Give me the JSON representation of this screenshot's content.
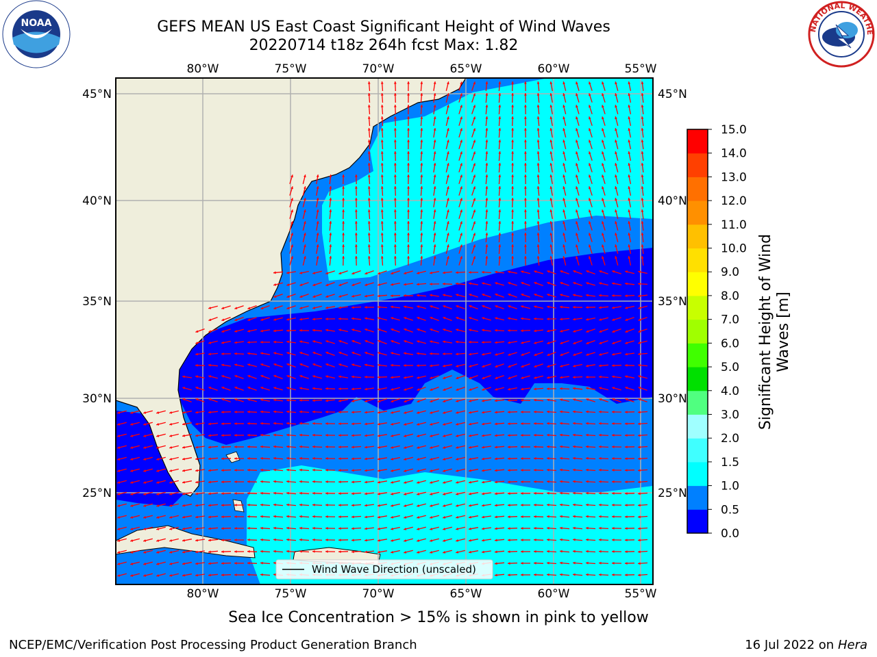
{
  "header": {
    "title_line1": "GEFS MEAN US East Coast Significant Height of Wind Waves",
    "title_line2": "20220714 t18z 264h fcst   Max: 1.82"
  },
  "logos": {
    "left": {
      "icon": "noaa-logo",
      "text": "NOAA",
      "ring_text": "NATIONAL OCEANIC AND ATMOSPHERIC ADMINISTRATION · U.S. DEPARTMENT OF COMMERCE"
    },
    "right": {
      "icon": "nws-logo",
      "ring_text": "NATIONAL WEATHER SERVICE"
    }
  },
  "map": {
    "lon_labels": [
      "80°W",
      "75°W",
      "70°W",
      "65°W",
      "60°W",
      "55°W"
    ],
    "lat_labels": [
      "45°N",
      "40°N",
      "35°N",
      "30°N",
      "25°N"
    ],
    "legend_label": "Wind Wave Direction (unscaled)",
    "colors": {
      "land": "#efeedc",
      "ocean_low": "#0000ff",
      "grid": "#b0b0b0",
      "arrow": "#ff0000"
    }
  },
  "colorbar": {
    "label": "Significant Height of Wind Waves [m]",
    "ticks": [
      "0.0",
      "0.5",
      "1.0",
      "1.5",
      "2.0",
      "3.0",
      "4.0",
      "5.0",
      "6.0",
      "7.0",
      "8.0",
      "9.0",
      "10.0",
      "11.0",
      "12.0",
      "13.0",
      "14.0",
      "15.0"
    ],
    "colors": [
      "#0000ff",
      "#0080ff",
      "#00ffff",
      "#40ffff",
      "#a0ffff",
      "#50ff80",
      "#00e000",
      "#40ff00",
      "#a0ff00",
      "#c8ff00",
      "#ffff00",
      "#ffe000",
      "#ffc000",
      "#ff9000",
      "#ff7000",
      "#ff4000",
      "#ff0000"
    ]
  },
  "footer": {
    "sea_ice_note": "Sea Ice Concentration > 15% is shown in pink to yellow",
    "credit": "NCEP/EMC/Verification Post Processing Product Generation Branch",
    "run_date": "16 Jul 2022 on",
    "host": "Hera"
  }
}
